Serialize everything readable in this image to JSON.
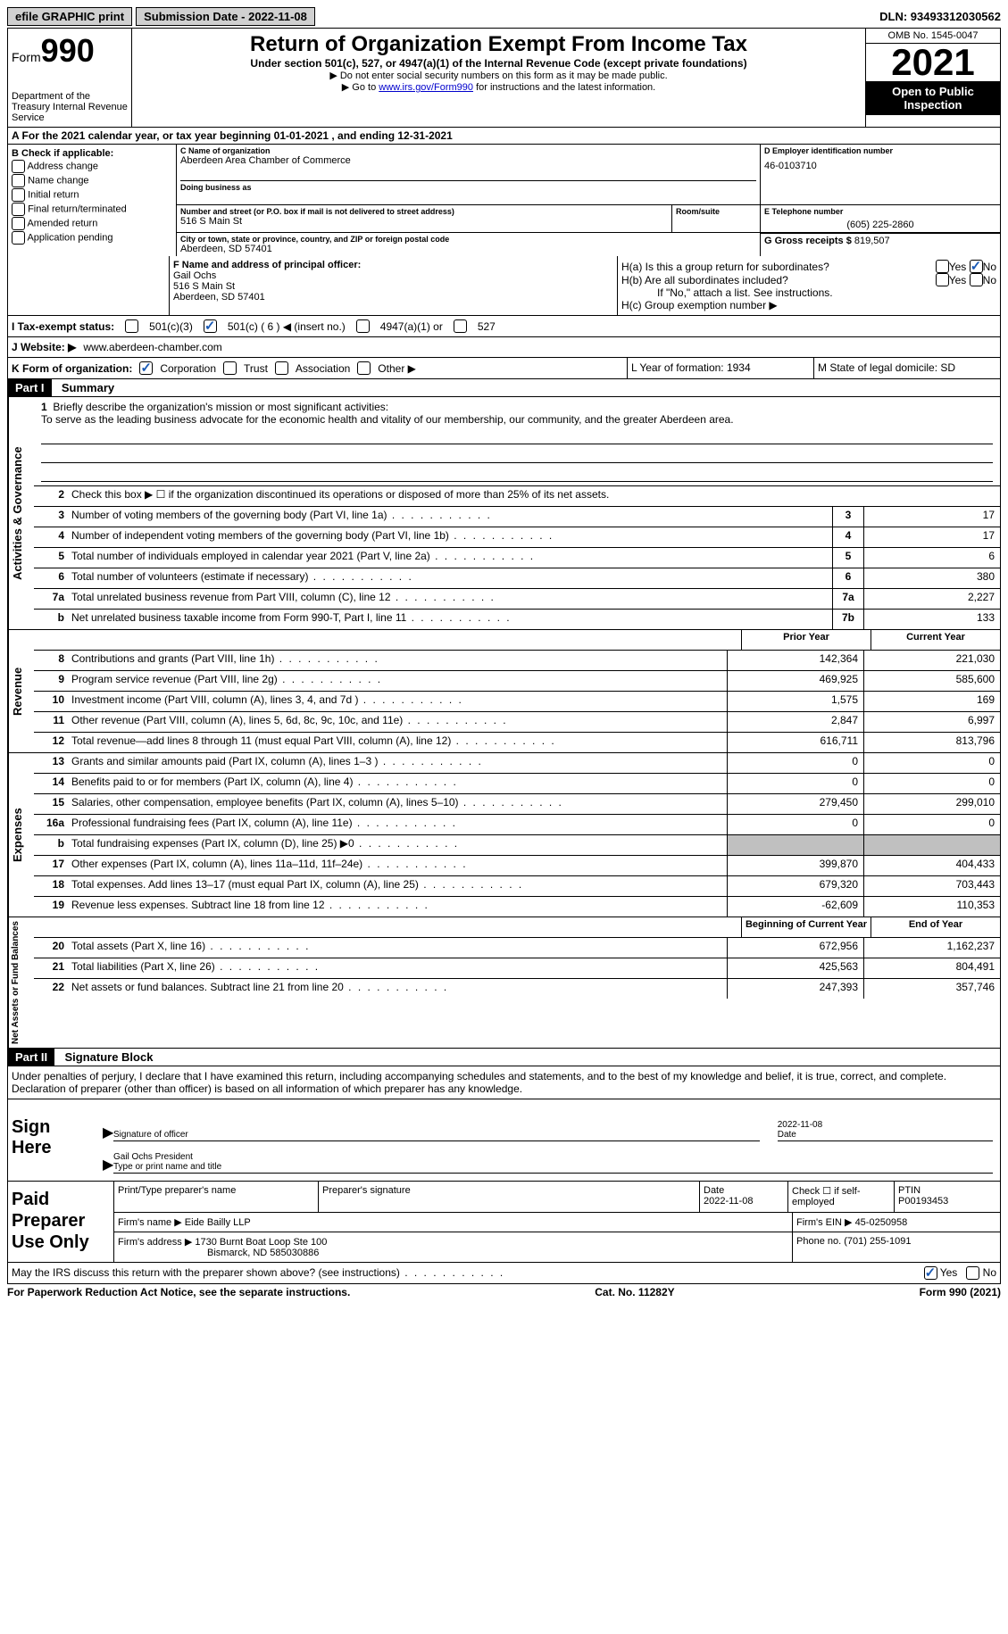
{
  "topbar": {
    "efile": "efile GRAPHIC print",
    "submission": "Submission Date - 2022-11-08",
    "dln": "DLN: 93493312030562"
  },
  "header": {
    "form_word": "Form",
    "form_num": "990",
    "dept": "Department of the Treasury\nInternal Revenue Service",
    "title": "Return of Organization Exempt From Income Tax",
    "sub": "Under section 501(c), 527, or 4947(a)(1) of the Internal Revenue Code (except private foundations)",
    "arrow1": "▶ Do not enter social security numbers on this form as it may be made public.",
    "arrow2_pre": "▶ Go to ",
    "arrow2_link": "www.irs.gov/Form990",
    "arrow2_post": " for instructions and the latest information.",
    "omb": "OMB No. 1545-0047",
    "year": "2021",
    "inspect": "Open to Public Inspection"
  },
  "rowA": "A For the 2021 calendar year, or tax year beginning 01-01-2021    , and ending 12-31-2021",
  "colB": {
    "title": "B Check if applicable:",
    "items": [
      "Address change",
      "Name change",
      "Initial return",
      "Final return/terminated",
      "Amended return",
      "Application pending"
    ]
  },
  "colC": {
    "name_label": "C Name of organization",
    "name": "Aberdeen Area Chamber of Commerce",
    "dba_label": "Doing business as",
    "dba": "",
    "street_label": "Number and street (or P.O. box if mail is not delivered to street address)",
    "room_label": "Room/suite",
    "street": "516 S Main St",
    "city_label": "City or town, state or province, country, and ZIP or foreign postal code",
    "city": "Aberdeen, SD  57401"
  },
  "colD": {
    "ein_label": "D Employer identification number",
    "ein": "46-0103710",
    "phone_label": "E Telephone number",
    "phone": "(605) 225-2860",
    "gross_label": "G Gross receipts $",
    "gross": "819,507"
  },
  "rowF": {
    "label": "F  Name and address of principal officer:",
    "name": "Gail Ochs",
    "street": "516 S Main St",
    "city": "Aberdeen, SD  57401"
  },
  "rowH": {
    "a": "H(a)  Is this a group return for subordinates?",
    "b": "H(b)  Are all subordinates included?",
    "b_note": "If \"No,\" attach a list. See instructions.",
    "c": "H(c)  Group exemption number ▶"
  },
  "rowI": {
    "label": "I    Tax-exempt status:",
    "opt1": "501(c)(3)",
    "opt2": "501(c) ( 6 ) ◀ (insert no.)",
    "opt3": "4947(a)(1) or",
    "opt4": "527"
  },
  "rowJ": {
    "label": "J   Website: ▶",
    "url": "www.aberdeen-chamber.com"
  },
  "rowK": {
    "label": "K Form of organization:",
    "opts": [
      "Corporation",
      "Trust",
      "Association",
      "Other ▶"
    ],
    "l": "L Year of formation: 1934",
    "m": "M State of legal domicile: SD"
  },
  "part1": {
    "header": "Part I",
    "title": "Summary",
    "line1_label": "Briefly describe the organization's mission or most significant activities:",
    "mission": "To serve as the leading business advocate for the economic health and vitality of our membership, our community, and the greater Aberdeen area.",
    "line2": "Check this box ▶ ☐  if the organization discontinued its operations or disposed of more than 25% of its net assets.",
    "sections": {
      "activities": "Activities & Governance",
      "revenue": "Revenue",
      "expenses": "Expenses",
      "netassets": "Net Assets or Fund Balances"
    },
    "col_prior": "Prior Year",
    "col_current": "Current Year",
    "col_boy": "Beginning of Current Year",
    "col_eoy": "End of Year",
    "rows_gov": [
      {
        "n": "3",
        "d": "Number of voting members of the governing body (Part VI, line 1a)",
        "box": "3",
        "v": "17"
      },
      {
        "n": "4",
        "d": "Number of independent voting members of the governing body (Part VI, line 1b)",
        "box": "4",
        "v": "17"
      },
      {
        "n": "5",
        "d": "Total number of individuals employed in calendar year 2021 (Part V, line 2a)",
        "box": "5",
        "v": "6"
      },
      {
        "n": "6",
        "d": "Total number of volunteers (estimate if necessary)",
        "box": "6",
        "v": "380"
      },
      {
        "n": "7a",
        "d": "Total unrelated business revenue from Part VIII, column (C), line 12",
        "box": "7a",
        "v": "2,227"
      },
      {
        "n": "b",
        "d": "Net unrelated business taxable income from Form 990-T, Part I, line 11",
        "box": "7b",
        "v": "133"
      }
    ],
    "rows_rev": [
      {
        "n": "8",
        "d": "Contributions and grants (Part VIII, line 1h)",
        "p": "142,364",
        "c": "221,030"
      },
      {
        "n": "9",
        "d": "Program service revenue (Part VIII, line 2g)",
        "p": "469,925",
        "c": "585,600"
      },
      {
        "n": "10",
        "d": "Investment income (Part VIII, column (A), lines 3, 4, and 7d )",
        "p": "1,575",
        "c": "169"
      },
      {
        "n": "11",
        "d": "Other revenue (Part VIII, column (A), lines 5, 6d, 8c, 9c, 10c, and 11e)",
        "p": "2,847",
        "c": "6,997"
      },
      {
        "n": "12",
        "d": "Total revenue—add lines 8 through 11 (must equal Part VIII, column (A), line 12)",
        "p": "616,711",
        "c": "813,796"
      }
    ],
    "rows_exp": [
      {
        "n": "13",
        "d": "Grants and similar amounts paid (Part IX, column (A), lines 1–3 )",
        "p": "0",
        "c": "0"
      },
      {
        "n": "14",
        "d": "Benefits paid to or for members (Part IX, column (A), line 4)",
        "p": "0",
        "c": "0"
      },
      {
        "n": "15",
        "d": "Salaries, other compensation, employee benefits (Part IX, column (A), lines 5–10)",
        "p": "279,450",
        "c": "299,010"
      },
      {
        "n": "16a",
        "d": "Professional fundraising fees (Part IX, column (A), line 11e)",
        "p": "0",
        "c": "0"
      },
      {
        "n": "b",
        "d": "Total fundraising expenses (Part IX, column (D), line 25) ▶0",
        "p": "",
        "c": "",
        "shaded": true
      },
      {
        "n": "17",
        "d": "Other expenses (Part IX, column (A), lines 11a–11d, 11f–24e)",
        "p": "399,870",
        "c": "404,433"
      },
      {
        "n": "18",
        "d": "Total expenses. Add lines 13–17 (must equal Part IX, column (A), line 25)",
        "p": "679,320",
        "c": "703,443"
      },
      {
        "n": "19",
        "d": "Revenue less expenses. Subtract line 18 from line 12",
        "p": "-62,609",
        "c": "110,353"
      }
    ],
    "rows_net": [
      {
        "n": "20",
        "d": "Total assets (Part X, line 16)",
        "p": "672,956",
        "c": "1,162,237"
      },
      {
        "n": "21",
        "d": "Total liabilities (Part X, line 26)",
        "p": "425,563",
        "c": "804,491"
      },
      {
        "n": "22",
        "d": "Net assets or fund balances. Subtract line 21 from line 20",
        "p": "247,393",
        "c": "357,746"
      }
    ]
  },
  "part2": {
    "header": "Part II",
    "title": "Signature Block",
    "penalty": "Under penalties of perjury, I declare that I have examined this return, including accompanying schedules and statements, and to the best of my knowledge and belief, it is true, correct, and complete. Declaration of preparer (other than officer) is based on all information of which preparer has any knowledge.",
    "sign_here": "Sign Here",
    "sig_officer": "Signature of officer",
    "sig_date": "2022-11-08",
    "date_label": "Date",
    "officer_name": "Gail Ochs  President",
    "officer_label": "Type or print name and title",
    "paid": "Paid Preparer Use Only",
    "prep_name_label": "Print/Type preparer's name",
    "prep_sig_label": "Preparer's signature",
    "prep_date_label": "Date",
    "prep_date": "2022-11-08",
    "prep_self": "Check ☐ if self-employed",
    "ptin_label": "PTIN",
    "ptin": "P00193453",
    "firm_name_label": "Firm's name      ▶",
    "firm_name": "Eide Bailly LLP",
    "firm_ein_label": "Firm's EIN ▶",
    "firm_ein": "45-0250958",
    "firm_addr_label": "Firm's address ▶",
    "firm_addr1": "1730 Burnt Boat Loop Ste 100",
    "firm_addr2": "Bismarck, ND  585030886",
    "firm_phone_label": "Phone no.",
    "firm_phone": "(701) 255-1091",
    "discuss": "May the IRS discuss this return with the preparer shown above? (see instructions)",
    "yes": "Yes",
    "no": "No"
  },
  "footer": {
    "paperwork": "For Paperwork Reduction Act Notice, see the separate instructions.",
    "cat": "Cat. No. 11282Y",
    "form": "Form 990 (2021)"
  }
}
